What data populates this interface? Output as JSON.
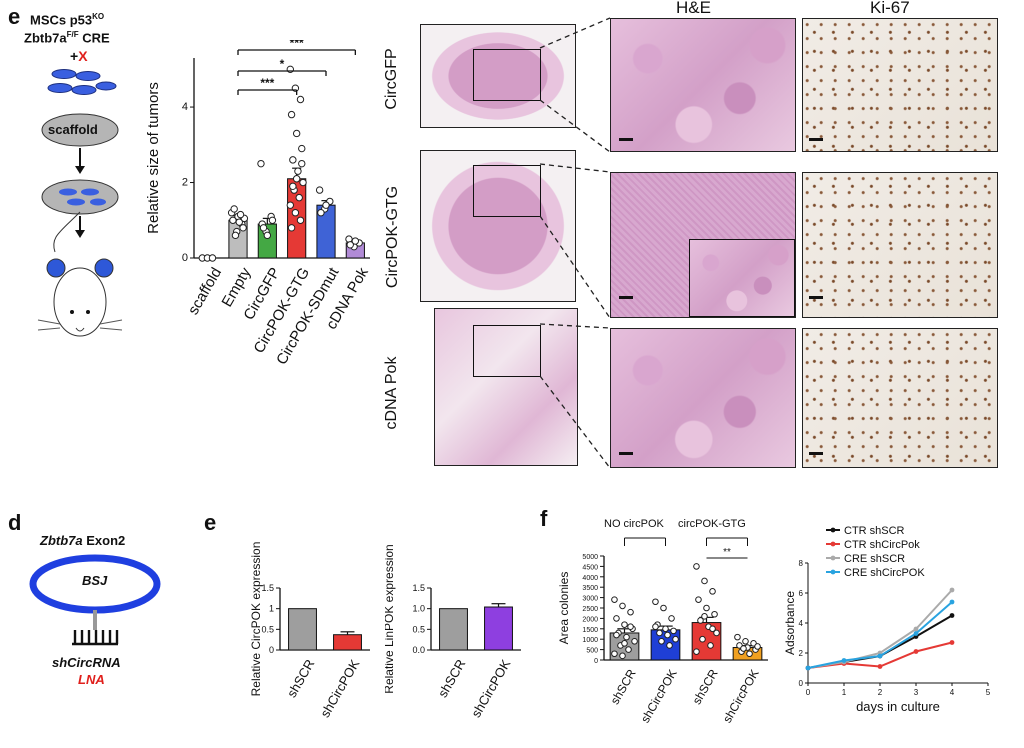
{
  "panel_e_top": {
    "letter": "e",
    "header_line1": "MSCs p53",
    "header_line1_sup": "KO",
    "header_line2": "Zbtb7a",
    "header_line2_sup": "F/F",
    "header_line2_tail": " CRE",
    "plus": "+",
    "x_mark": "X",
    "scaffold_label": "scaffold",
    "chart_data": {
      "type": "bar",
      "ylabel": "Relative size of tumors",
      "categories": [
        "scaffold",
        "Empty",
        "CircGFP",
        "CircPOK-GTG",
        "CircPOK-SDmut",
        "cDNA Pok"
      ],
      "values": [
        0,
        1.0,
        0.9,
        2.1,
        1.4,
        0.4
      ],
      "errors": [
        0,
        0.12,
        0.15,
        0.28,
        0.12,
        0.06
      ],
      "colors": [
        "#ffffff",
        "#bdbdbd",
        "#44a844",
        "#e53935",
        "#3f63d6",
        "#b18bd6"
      ],
      "yticks": [
        0,
        2,
        4
      ],
      "ylim": [
        0,
        5.3
      ],
      "points": [
        [
          0,
          0,
          0
        ],
        [
          1.2,
          0.7,
          0.9,
          1.0,
          1.1,
          0.8,
          1.3,
          0.95,
          1.05,
          0.6,
          1.15
        ],
        [
          2.5,
          0.7,
          1.1,
          0.9,
          0.6,
          1.0,
          0.8
        ],
        [
          5.0,
          4.5,
          4.2,
          3.8,
          3.3,
          2.9,
          2.6,
          2.3,
          2.0,
          1.8,
          1.6,
          1.4,
          1.2,
          1.0,
          0.8,
          2.1,
          2.5,
          1.9
        ],
        [
          1.8,
          1.3,
          1.5,
          1.2,
          1.4
        ],
        [
          0.5,
          0.3,
          0.4,
          0.35,
          0.45
        ]
      ],
      "significance": [
        "***",
        "*",
        "***"
      ]
    },
    "col_headers": [
      "H&E",
      "Ki-67"
    ],
    "row_labels": [
      "CircGFP",
      "CircPOK-GTG",
      "cDNA Pok"
    ]
  },
  "panel_d": {
    "letter": "d",
    "exon_gene": "Zbtb7a",
    "exon_label": " Exon2",
    "bsj": "BSJ",
    "shcirc": "shCircRNA",
    "lna": "LNA"
  },
  "panel_e_bottom": {
    "letter": "e",
    "chart_data": [
      {
        "type": "bar",
        "ylabel": "Relative CircPOK expression",
        "categories": [
          "shSCR",
          "shCircPOK"
        ],
        "values": [
          1.0,
          0.37
        ],
        "errors": [
          0,
          0.07
        ],
        "colors": [
          "#9e9e9e",
          "#e53935"
        ],
        "yticks": [
          0.0,
          0.5,
          1.0,
          1.5
        ],
        "ytick_labels": [
          "0",
          "0.5",
          "1",
          "1.5"
        ],
        "ylim": [
          0,
          1.5
        ]
      },
      {
        "type": "bar",
        "ylabel": "Relative LinPOK expression",
        "categories": [
          "shSCR",
          "shCircPOK"
        ],
        "values": [
          1.0,
          1.04
        ],
        "errors": [
          0,
          0.08
        ],
        "colors": [
          "#9e9e9e",
          "#8e3fe0"
        ],
        "yticks": [
          0.0,
          0.5,
          1.0,
          1.5
        ],
        "ytick_labels": [
          "0.0",
          "0.5",
          "1.0",
          "1.5"
        ],
        "ylim": [
          0,
          1.5
        ]
      }
    ]
  },
  "panel_f": {
    "letter": "f",
    "group1": "NO circPOK",
    "group2": "circPOK-GTG",
    "sig": "**",
    "colonies_chart": {
      "type": "bar",
      "ylabel": "Area colonies",
      "categories": [
        "shSCR",
        "shCircPOK",
        "shSCR",
        "shCircPOK"
      ],
      "values": [
        1300,
        1450,
        1800,
        600
      ],
      "errors": [
        200,
        180,
        250,
        90
      ],
      "colors": [
        "#9e9e9e",
        "#1f3fd6",
        "#e53935",
        "#f0a020"
      ],
      "yticks": [
        0,
        500,
        1000,
        1500,
        2000,
        2500,
        3000,
        3500,
        4000,
        4500,
        5000
      ],
      "ylim": [
        0,
        5000
      ],
      "points": [
        [
          2900,
          2600,
          2300,
          2000,
          1700,
          1500,
          1300,
          1100,
          900,
          700,
          500,
          300,
          200,
          1600,
          1200,
          800
        ],
        [
          2800,
          2500,
          2000,
          1700,
          1500,
          1400,
          1300,
          1200,
          1000,
          900,
          700,
          1600
        ],
        [
          4500,
          3800,
          3300,
          2900,
          2500,
          2200,
          1900,
          1600,
          1300,
          1000,
          700,
          400,
          2100,
          1500
        ],
        [
          1100,
          900,
          800,
          700,
          600,
          500,
          400,
          300,
          650,
          550
        ]
      ]
    },
    "line_chart": {
      "type": "line",
      "ylabel": "Adsorbance",
      "xlabel": "days in culture",
      "x": [
        0,
        1,
        2,
        3,
        4
      ],
      "xticks": [
        0,
        1,
        2,
        3,
        4,
        5
      ],
      "yticks": [
        0,
        2,
        4,
        6,
        8
      ],
      "xlim": [
        0,
        5
      ],
      "ylim": [
        0,
        8
      ],
      "series": [
        {
          "name": "CTR shSCR",
          "color": "#111111",
          "values": [
            1.0,
            1.4,
            1.8,
            3.1,
            4.5
          ]
        },
        {
          "name": "CTR shCircPok",
          "color": "#e53935",
          "values": [
            1.0,
            1.3,
            1.1,
            2.1,
            2.7
          ]
        },
        {
          "name": "CRE shSCR",
          "color": "#aaaaaa",
          "values": [
            1.0,
            1.4,
            2.0,
            3.6,
            6.2
          ]
        },
        {
          "name": "CRE shCircPOK",
          "color": "#29a3e0",
          "values": [
            1.0,
            1.5,
            1.8,
            3.3,
            5.4
          ]
        }
      ]
    }
  }
}
